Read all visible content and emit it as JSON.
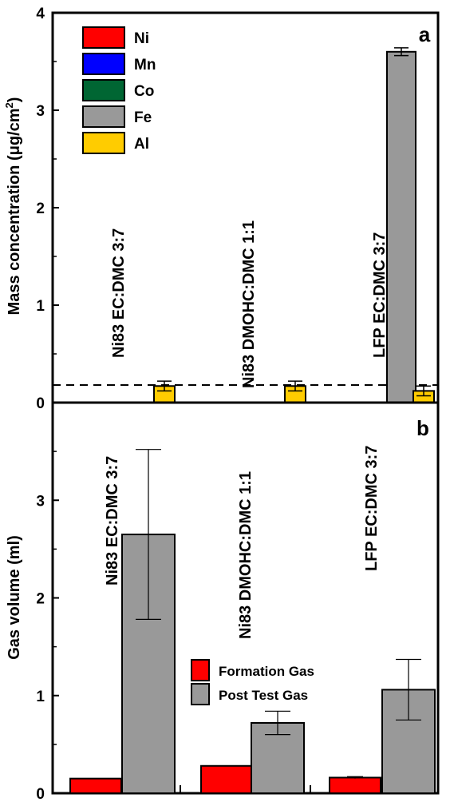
{
  "chart_data": [
    {
      "panel": "a",
      "type": "bar",
      "ylabel_text": "Mass concentration (",
      "ylabel_unit": "μg/cm",
      "ylabel_sup": "2",
      "ylabel_close": ")",
      "ylim": [
        0,
        4
      ],
      "yticks": [
        "0",
        "1",
        "2",
        "3",
        "4"
      ],
      "categories": [
        "Ni83 EC:DMC 3:7",
        "Ni83 DMOHC:DMC 1:1",
        "LFP EC:DMC 3:7"
      ],
      "series": [
        {
          "name": "Ni",
          "color": "#ff0000",
          "values": [
            0,
            0,
            0
          ]
        },
        {
          "name": "Mn",
          "color": "#0000ff",
          "values": [
            0,
            0,
            0
          ]
        },
        {
          "name": "Co",
          "color": "#006633",
          "values": [
            0,
            0,
            0
          ]
        },
        {
          "name": "Fe",
          "color": "#999999",
          "values": [
            0,
            0,
            3.6
          ],
          "errors": [
            0,
            0,
            0.04
          ]
        },
        {
          "name": "Al",
          "color": "#ffcc00",
          "values": [
            0.17,
            0.17,
            0.12
          ],
          "errors": [
            0.05,
            0.05,
            0.05
          ]
        }
      ],
      "reference_line": 0.18,
      "legend_position": "top-left",
      "grid": false
    },
    {
      "panel": "b",
      "type": "bar",
      "ylabel": "Gas volume (ml)",
      "ylim": [
        0,
        4
      ],
      "yticks": [
        "0",
        "1",
        "2",
        "3"
      ],
      "categories": [
        "Ni83 EC:DMC 3:7",
        "Ni83 DMOHC:DMC 1:1",
        "LFP EC:DMC 3:7"
      ],
      "series": [
        {
          "name": "Formation Gas",
          "color": "#ff0000",
          "values": [
            0.15,
            0.28,
            0.16
          ],
          "errors": [
            0,
            0,
            0.01
          ]
        },
        {
          "name": "Post Test Gas",
          "color": "#999999",
          "values": [
            2.65,
            0.72,
            1.06
          ],
          "errors": [
            0.87,
            0.12,
            0.31
          ]
        }
      ],
      "legend_position": "bottom-center",
      "grid": false
    }
  ]
}
